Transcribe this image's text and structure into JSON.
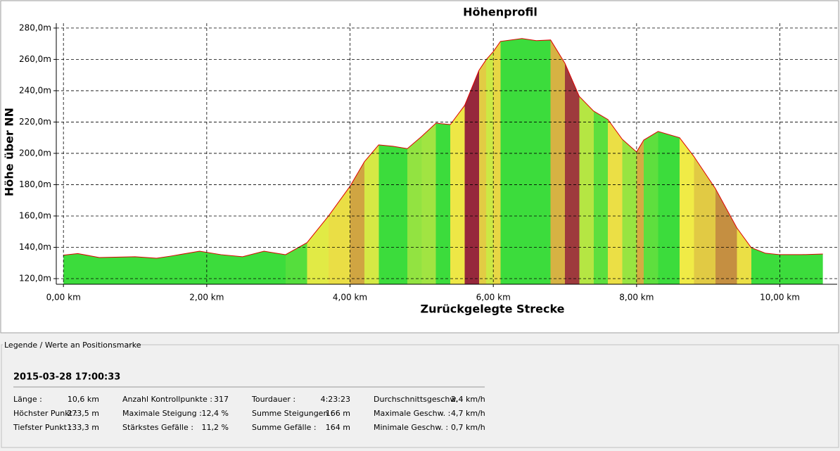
{
  "chart_data": {
    "type": "area",
    "title": "Höhenprofil",
    "x_label": "Zurückgelegte Strecke",
    "y_label": "Höhe über NN",
    "x": [
      0,
      0.2,
      0.5,
      1.0,
      1.3,
      1.5,
      1.9,
      2.2,
      2.5,
      2.8,
      3.1,
      3.4,
      3.7,
      4.0,
      4.2,
      4.4,
      4.6,
      4.8,
      5.0,
      5.2,
      5.4,
      5.6,
      5.8,
      5.9,
      6.0,
      6.1,
      6.4,
      6.6,
      6.8,
      7.0,
      7.2,
      7.4,
      7.6,
      7.8,
      8.0,
      8.1,
      8.3,
      8.6,
      8.8,
      9.1,
      9.4,
      9.6,
      9.8,
      10.0,
      10.3,
      10.6
    ],
    "values": [
      135,
      136,
      133.5,
      134,
      133,
      134.4,
      137.5,
      135.3,
      134,
      137.5,
      135.3,
      143,
      160,
      179,
      194.6,
      205.4,
      204.5,
      203,
      210.8,
      219.3,
      218.4,
      230.6,
      253,
      259.8,
      265,
      271.5,
      273.3,
      272,
      272.4,
      257.5,
      236.4,
      227,
      221.6,
      209,
      200.9,
      208.5,
      214,
      210,
      198,
      177.5,
      152.4,
      139.8,
      136.2,
      135.3,
      135.3,
      135.7
    ],
    "color": "#dd0000",
    "xlim": [
      -0.1,
      10.8
    ],
    "ylim": [
      116.4,
      283.1
    ],
    "xticks": [
      {
        "value": 0,
        "label": "0,00 km"
      },
      {
        "value": 2,
        "label": "2,00 km"
      },
      {
        "value": 4,
        "label": "4,00 km"
      },
      {
        "value": 6,
        "label": "6,00 km"
      },
      {
        "value": 8,
        "label": "8,00 km"
      },
      {
        "value": 10,
        "label": "10,00 km"
      }
    ],
    "yticks": [
      {
        "value": 120,
        "label": "120,0m"
      },
      {
        "value": 140,
        "label": "140,0m"
      },
      {
        "value": 160,
        "label": "160,0m"
      },
      {
        "value": 180,
        "label": "180,0m"
      },
      {
        "value": 200,
        "label": "200,0m"
      },
      {
        "value": 220,
        "label": "220,0m"
      },
      {
        "value": 240,
        "label": "240,0m"
      },
      {
        "value": 260,
        "label": "260,0m"
      },
      {
        "value": 280,
        "label": "280,0m"
      }
    ],
    "grid": true
  },
  "legend_panel": {
    "title": "Legende / Werte an Positionsmarke",
    "date": "2015-03-28 17:00:33",
    "columns": [
      [
        [
          "Länge :",
          "10,6 km"
        ],
        [
          "Höchster Punkt :",
          "273,5 m"
        ],
        [
          "Tiefster Punkt :",
          "133,3 m"
        ]
      ],
      [
        [
          "Anzahl Kontrollpunkte :",
          "317"
        ],
        [
          "Maximale Steigung :",
          "12,4 %"
        ],
        [
          "Stärkstes Gefälle :",
          "11,2 %"
        ]
      ],
      [
        [
          "Tourdauer :",
          "4:23:23"
        ],
        [
          "Summe Steigungen :",
          "166 m"
        ],
        [
          "Summe Gefälle :",
          "164 m"
        ]
      ],
      [
        [
          "Durchschnittsgeschw. :",
          "2,4 km/h"
        ],
        [
          "Maximale Geschw. :",
          "4,7 km/h"
        ],
        [
          "Minimale Geschw. :",
          "0,7 km/h"
        ]
      ]
    ]
  }
}
